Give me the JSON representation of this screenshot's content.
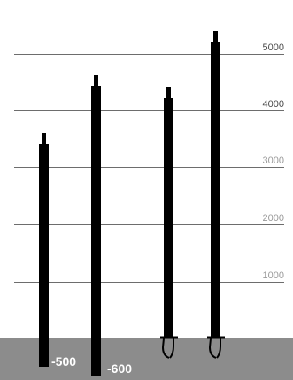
{
  "scale_labels": [
    "5000",
    "4000",
    "3000",
    "2000",
    "1000"
  ],
  "depth_labels": [
    "-500",
    "-600"
  ],
  "colors": {
    "ground": "#8c8c8c",
    "rod": "#000000",
    "gridline": "#6d6d6d",
    "scale_text_dark": "#4a4a4a",
    "scale_text_light": "#9a9a9a",
    "depth_text": "#ffffff"
  },
  "icons": [
    "hook-foot-icon",
    "hook-foot-icon"
  ]
}
